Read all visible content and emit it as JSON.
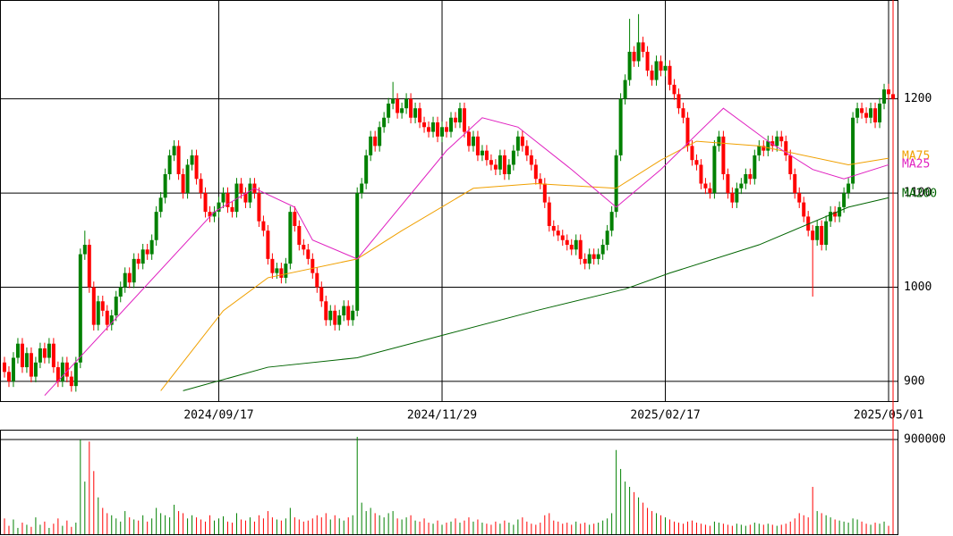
{
  "chart_data": {
    "type": "candlestick",
    "up_color": "#008000",
    "down_color": "#ff0000",
    "ylim": [
      879,
      1305
    ],
    "yticks": [
      900,
      1000,
      1100,
      1200
    ],
    "xlim": [
      -1,
      200
    ],
    "xticks": [
      {
        "value": 48,
        "label": "2024/09/17"
      },
      {
        "value": 98,
        "label": "2024/11/29"
      },
      {
        "value": 148,
        "label": "2025/02/17"
      },
      {
        "value": 198,
        "label": "2025/05/01"
      }
    ],
    "open": [
      920,
      910,
      900,
      925,
      940,
      915,
      930,
      905,
      920,
      935,
      925,
      940,
      915,
      900,
      920,
      905,
      895,
      920,
      1035,
      1045,
      1000,
      960,
      985,
      975,
      960,
      970,
      990,
      1000,
      1015,
      1005,
      1030,
      1025,
      1040,
      1035,
      1050,
      1080,
      1095,
      1120,
      1140,
      1150,
      1120,
      1100,
      1130,
      1140,
      1115,
      1100,
      1080,
      1075,
      1080,
      1090,
      1100,
      1085,
      1080,
      1110,
      1100,
      1090,
      1110,
      1100,
      1070,
      1060,
      1030,
      1015,
      1020,
      1010,
      1025,
      1080,
      1065,
      1045,
      1040,
      1030,
      1015,
      1000,
      985,
      965,
      975,
      960,
      970,
      980,
      965,
      975,
      1100,
      1110,
      1140,
      1160,
      1150,
      1170,
      1180,
      1195,
      1200,
      1185,
      1190,
      1200,
      1180,
      1190,
      1175,
      1170,
      1165,
      1175,
      1160,
      1170,
      1165,
      1180,
      1175,
      1190,
      1165,
      1150,
      1160,
      1140,
      1145,
      1135,
      1130,
      1125,
      1140,
      1120,
      1130,
      1145,
      1160,
      1150,
      1140,
      1130,
      1115,
      1110,
      1090,
      1065,
      1060,
      1055,
      1050,
      1045,
      1040,
      1050,
      1030,
      1025,
      1035,
      1030,
      1035,
      1045,
      1060,
      1080,
      1140,
      1200,
      1220,
      1250,
      1240,
      1260,
      1250,
      1230,
      1220,
      1240,
      1230,
      1235,
      1215,
      1205,
      1190,
      1180,
      1150,
      1135,
      1130,
      1110,
      1105,
      1100,
      1150,
      1160,
      1120,
      1100,
      1090,
      1105,
      1110,
      1120,
      1115,
      1140,
      1150,
      1145,
      1155,
      1150,
      1160,
      1155,
      1140,
      1120,
      1100,
      1090,
      1075,
      1060,
      1050,
      1065,
      1045,
      1070,
      1080,
      1075,
      1085,
      1100,
      1110,
      1180,
      1190,
      1185,
      1180,
      1190,
      1175,
      1195,
      1210,
      1205
    ],
    "high": [
      926,
      916,
      931,
      946,
      946,
      936,
      936,
      926,
      941,
      941,
      946,
      946,
      921,
      926,
      926,
      911,
      926,
      1041,
      1060,
      1051,
      1006,
      991,
      991,
      981,
      976,
      996,
      1006,
      1021,
      1021,
      1036,
      1036,
      1046,
      1046,
      1056,
      1086,
      1101,
      1126,
      1146,
      1156,
      1156,
      1126,
      1136,
      1146,
      1146,
      1121,
      1106,
      1086,
      1086,
      1096,
      1106,
      1106,
      1091,
      1116,
      1116,
      1106,
      1116,
      1116,
      1106,
      1076,
      1066,
      1036,
      1026,
      1026,
      1031,
      1086,
      1086,
      1071,
      1051,
      1046,
      1036,
      1021,
      1006,
      991,
      981,
      981,
      976,
      986,
      986,
      981,
      1106,
      1116,
      1146,
      1166,
      1166,
      1176,
      1186,
      1201,
      1218,
      1206,
      1196,
      1206,
      1206,
      1196,
      1196,
      1181,
      1176,
      1181,
      1181,
      1176,
      1176,
      1186,
      1186,
      1196,
      1196,
      1171,
      1166,
      1166,
      1151,
      1151,
      1141,
      1136,
      1146,
      1146,
      1136,
      1151,
      1166,
      1166,
      1156,
      1146,
      1136,
      1121,
      1116,
      1096,
      1071,
      1066,
      1061,
      1056,
      1051,
      1056,
      1056,
      1036,
      1041,
      1041,
      1041,
      1051,
      1066,
      1086,
      1146,
      1206,
      1226,
      1285,
      1256,
      1290,
      1266,
      1256,
      1236,
      1246,
      1246,
      1241,
      1241,
      1221,
      1211,
      1196,
      1186,
      1156,
      1141,
      1136,
      1116,
      1111,
      1156,
      1166,
      1166,
      1126,
      1106,
      1111,
      1116,
      1126,
      1126,
      1146,
      1156,
      1156,
      1161,
      1161,
      1166,
      1166,
      1161,
      1146,
      1126,
      1106,
      1096,
      1081,
      1066,
      1071,
      1071,
      1076,
      1086,
      1086,
      1091,
      1106,
      1116,
      1186,
      1196,
      1196,
      1191,
      1196,
      1196,
      1201,
      1216,
      1216,
      1211
    ],
    "low": [
      904,
      894,
      894,
      919,
      909,
      909,
      899,
      899,
      914,
      919,
      919,
      909,
      894,
      894,
      899,
      889,
      889,
      914,
      1029,
      994,
      954,
      954,
      969,
      954,
      954,
      964,
      984,
      994,
      999,
      999,
      1019,
      1019,
      1029,
      1029,
      1044,
      1074,
      1089,
      1114,
      1134,
      1114,
      1094,
      1094,
      1124,
      1109,
      1094,
      1074,
      1069,
      1069,
      1074,
      1084,
      1079,
      1074,
      1074,
      1094,
      1084,
      1084,
      1094,
      1064,
      1054,
      1024,
      1009,
      1009,
      1004,
      1004,
      1019,
      1059,
      1039,
      1034,
      1024,
      1009,
      994,
      979,
      959,
      959,
      954,
      954,
      964,
      959,
      959,
      969,
      1094,
      1104,
      1134,
      1144,
      1144,
      1164,
      1174,
      1189,
      1179,
      1179,
      1184,
      1174,
      1174,
      1169,
      1164,
      1159,
      1159,
      1154,
      1154,
      1159,
      1159,
      1169,
      1169,
      1159,
      1144,
      1144,
      1134,
      1134,
      1129,
      1124,
      1119,
      1119,
      1114,
      1114,
      1124,
      1139,
      1144,
      1134,
      1124,
      1109,
      1104,
      1084,
      1059,
      1054,
      1049,
      1044,
      1039,
      1034,
      1034,
      1024,
      1019,
      1019,
      1024,
      1024,
      1029,
      1039,
      1054,
      1074,
      1134,
      1194,
      1214,
      1234,
      1234,
      1244,
      1224,
      1214,
      1214,
      1224,
      1224,
      1209,
      1199,
      1184,
      1174,
      1144,
      1129,
      1124,
      1104,
      1099,
      1094,
      1094,
      1144,
      1114,
      1094,
      1084,
      1084,
      1099,
      1104,
      1109,
      1109,
      1134,
      1139,
      1139,
      1144,
      1144,
      1149,
      1134,
      1114,
      1094,
      1084,
      1069,
      1054,
      990,
      1044,
      1039,
      1039,
      1064,
      1069,
      1069,
      1079,
      1094,
      1104,
      1174,
      1179,
      1174,
      1174,
      1169,
      1169,
      1189,
      1199,
      1194
    ],
    "close": [
      910,
      900,
      925,
      940,
      915,
      930,
      905,
      920,
      935,
      925,
      940,
      915,
      900,
      920,
      905,
      895,
      920,
      1035,
      1045,
      1000,
      960,
      985,
      975,
      960,
      970,
      990,
      1000,
      1015,
      1005,
      1030,
      1025,
      1040,
      1035,
      1050,
      1080,
      1095,
      1120,
      1140,
      1150,
      1120,
      1100,
      1130,
      1140,
      1115,
      1100,
      1080,
      1075,
      1080,
      1090,
      1100,
      1085,
      1080,
      1110,
      1100,
      1090,
      1110,
      1100,
      1070,
      1060,
      1030,
      1015,
      1020,
      1010,
      1025,
      1080,
      1065,
      1045,
      1040,
      1030,
      1015,
      1000,
      985,
      965,
      975,
      960,
      970,
      980,
      965,
      975,
      1100,
      1110,
      1140,
      1160,
      1150,
      1170,
      1180,
      1195,
      1200,
      1185,
      1190,
      1200,
      1180,
      1190,
      1175,
      1170,
      1165,
      1175,
      1160,
      1170,
      1165,
      1180,
      1175,
      1190,
      1165,
      1150,
      1160,
      1140,
      1145,
      1135,
      1130,
      1125,
      1140,
      1120,
      1130,
      1145,
      1160,
      1150,
      1140,
      1130,
      1115,
      1110,
      1090,
      1065,
      1060,
      1055,
      1050,
      1045,
      1040,
      1050,
      1030,
      1025,
      1035,
      1030,
      1035,
      1045,
      1060,
      1080,
      1140,
      1200,
      1220,
      1250,
      1240,
      1260,
      1250,
      1230,
      1220,
      1240,
      1230,
      1235,
      1215,
      1205,
      1190,
      1180,
      1150,
      1135,
      1130,
      1110,
      1105,
      1100,
      1150,
      1160,
      1120,
      1100,
      1090,
      1105,
      1110,
      1120,
      1115,
      1140,
      1150,
      1145,
      1155,
      1150,
      1160,
      1155,
      1140,
      1120,
      1100,
      1090,
      1075,
      1060,
      1050,
      1065,
      1045,
      1070,
      1080,
      1075,
      1085,
      1100,
      1110,
      1180,
      1190,
      1185,
      1180,
      1190,
      1175,
      1195,
      1210,
      1205,
      1200
    ],
    "ma": [
      {
        "name": "MA75",
        "color": "#f0a000",
        "x": [
          35,
          49,
          59,
          79,
          89,
          105,
          119,
          137,
          147,
          155,
          169,
          189,
          198
        ],
        "values": [
          890,
          975,
          1010,
          1030,
          1060,
          1105,
          1110,
          1105,
          1135,
          1155,
          1150,
          1130,
          1137
        ]
      },
      {
        "name": "MA25",
        "color": "#e020c0",
        "x": [
          9,
          47,
          56,
          65,
          69,
          79,
          99,
          107,
          115,
          127,
          137,
          147,
          161,
          171,
          181,
          188,
          198
        ],
        "values": [
          885,
          1080,
          1105,
          1085,
          1050,
          1030,
          1145,
          1180,
          1170,
          1125,
          1085,
          1125,
          1190,
          1155,
          1125,
          1115,
          1130
        ]
      },
      {
        "name": "MA200",
        "color": "#006400",
        "x": [
          40,
          59,
          79,
          99,
          119,
          139,
          149,
          169,
          189,
          198
        ],
        "values": [
          890,
          915,
          925,
          950,
          975,
          998,
          1015,
          1045,
          1085,
          1095
        ]
      }
    ],
    "volume": {
      "ylim": [
        0,
        993000
      ],
      "yticks": [
        900000
      ],
      "values": [
        150000,
        80000,
        140000,
        60000,
        110000,
        90000,
        70000,
        160000,
        90000,
        120000,
        60000,
        100000,
        150000,
        80000,
        130000,
        70000,
        110000,
        900000,
        500000,
        880000,
        600000,
        350000,
        250000,
        200000,
        180000,
        150000,
        120000,
        220000,
        160000,
        140000,
        130000,
        180000,
        120000,
        150000,
        250000,
        200000,
        180000,
        160000,
        280000,
        220000,
        200000,
        150000,
        180000,
        160000,
        140000,
        120000,
        180000,
        130000,
        150000,
        170000,
        120000,
        110000,
        200000,
        140000,
        130000,
        160000,
        120000,
        180000,
        150000,
        220000,
        160000,
        140000,
        130000,
        150000,
        250000,
        160000,
        140000,
        120000,
        130000,
        150000,
        180000,
        160000,
        200000,
        140000,
        180000,
        150000,
        130000,
        160000,
        180000,
        925000,
        300000,
        220000,
        250000,
        200000,
        180000,
        160000,
        200000,
        220000,
        150000,
        140000,
        160000,
        180000,
        130000,
        120000,
        150000,
        110000,
        100000,
        130000,
        90000,
        110000,
        120000,
        150000,
        110000,
        130000,
        160000,
        120000,
        140000,
        110000,
        100000,
        90000,
        120000,
        100000,
        130000,
        110000,
        90000,
        140000,
        160000,
        120000,
        100000,
        90000,
        110000,
        180000,
        200000,
        130000,
        120000,
        100000,
        110000,
        90000,
        120000,
        100000,
        110000,
        90000,
        100000,
        110000,
        130000,
        150000,
        200000,
        800000,
        620000,
        500000,
        450000,
        400000,
        350000,
        300000,
        250000,
        220000,
        200000,
        180000,
        160000,
        140000,
        120000,
        110000,
        100000,
        120000,
        130000,
        110000,
        100000,
        90000,
        80000,
        120000,
        110000,
        100000,
        90000,
        80000,
        100000,
        90000,
        80000,
        90000,
        110000,
        100000,
        90000,
        100000,
        90000,
        80000,
        90000,
        100000,
        120000,
        150000,
        200000,
        180000,
        160000,
        450000,
        220000,
        200000,
        180000,
        160000,
        140000,
        130000,
        120000,
        110000,
        150000,
        140000,
        120000,
        100000,
        90000,
        110000,
        100000,
        120000,
        80000
      ]
    }
  }
}
